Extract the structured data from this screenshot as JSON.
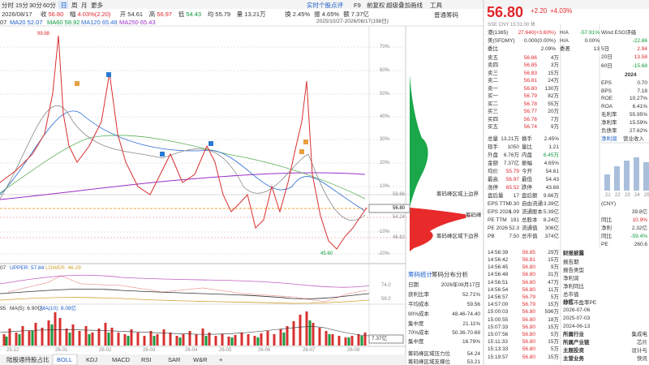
{
  "toolbar": {
    "periods": [
      "分时",
      "15分",
      "30分",
      "60分",
      "日",
      "周",
      "月",
      "更多"
    ],
    "tools": [
      "实时个股点评",
      "F9",
      "前复权",
      "超级叠加",
      "画线",
      "工具"
    ]
  },
  "quote_line": [
    "2026/08/17",
    "收",
    "56.80",
    "幅",
    "4.03%(2.20)",
    "开",
    "54.61",
    "高",
    "56.97",
    "低",
    "54.43",
    "均",
    "55.79",
    "量",
    "13.21万",
    "换",
    "2.45%",
    "振",
    "4.65%",
    "额",
    "7.37亿"
  ],
  "ma_line": [
    "07",
    "MA20 52.07",
    "MA60 58.92",
    "MA120 65.48",
    "MA250 65.43"
  ],
  "chart": {
    "range": "2025/10/27-2026/08/17(198日)",
    "chip_title": "普通筹码",
    "high": "99.88",
    "low": "45.60",
    "pct_labels": [
      "70%",
      "60%",
      "50%",
      "40%",
      "30%",
      "20%",
      "10%",
      "-10%",
      "-20%"
    ],
    "price_labels": [
      "59.66",
      "56.80",
      "54.24",
      "46.82"
    ],
    "chip_labels": [
      "筹码峰区域上边界",
      "筹码峰",
      "筹码峰区域下边界"
    ],
    "x_labels": [
      "25-12",
      "26-01",
      "26-02",
      "26-03",
      "26-04",
      "26-05",
      "26-06",
      "26-07",
      "26-08"
    ]
  },
  "boll": {
    "header": [
      "07",
      "UPPER: 57.84",
      "LOWER: 46.29"
    ],
    "axis": [
      "74.0",
      "56.0"
    ]
  },
  "volume": {
    "header": [
      "95",
      "MA(5): 6.90亿",
      "MA(10): 8.08亿"
    ],
    "last": "7.37亿"
  },
  "tabs": [
    "陆股通持股占比",
    "BOLL",
    "KDJ",
    "MACD",
    "RSI",
    "SAR",
    "W&R",
    "+"
  ],
  "chip_stats": {
    "tabs": [
      "筹码统计",
      "筹码分布分析"
    ],
    "rows": [
      [
        "日期",
        "2026年08月17日"
      ],
      [
        "获利比率",
        "52.71%"
      ],
      [
        "平均成本",
        "59.56"
      ],
      [
        "90%成本",
        "48.46-74.40"
      ],
      [
        "集中度",
        "21.11%"
      ],
      [
        "70%成本",
        "50.36-70.68"
      ],
      [
        "集中度",
        "16.79%"
      ],
      [
        "筹码峰区域压力位",
        "54.24"
      ],
      [
        "筹码峰区域支撑位",
        "53.21"
      ]
    ]
  },
  "quote": {
    "price": "56.80",
    "change": "+2.20",
    "pct": "+4.03%",
    "status": "SSE CNY 15:31:00 休",
    "hk": [
      "港(1385)",
      "27.640(+3.60%)",
      "H/A",
      "-57.91%"
    ],
    "us": [
      "美(SFDMY)",
      "0.000(0.00%)",
      "H/A",
      "0.00%"
    ],
    "wb": [
      "委比",
      "2.09%",
      "委差",
      "13"
    ],
    "book": [
      [
        "卖五",
        "56.86",
        "4万"
      ],
      [
        "卖四",
        "56.85",
        "3万"
      ],
      [
        "卖三",
        "56.83",
        "15万"
      ],
      [
        "卖二",
        "56.81",
        "24万"
      ],
      [
        "卖一",
        "56.80",
        "130万"
      ],
      [
        "买一",
        "56.79",
        "82万"
      ],
      [
        "买二",
        "56.78",
        "55万"
      ],
      [
        "买三",
        "56.77",
        "20万"
      ],
      [
        "买四",
        "56.76",
        "7万"
      ],
      [
        "买五",
        "56.74",
        "9万"
      ]
    ],
    "stats": [
      [
        "总量",
        "13.21万",
        "换手",
        "2.45%"
      ],
      [
        "现手",
        "1050",
        "量比",
        "1.21"
      ],
      [
        "外盘",
        "6.76万",
        "内盘",
        "6.45万"
      ],
      [
        "金额",
        "7.37亿",
        "振幅",
        "4.65%"
      ],
      [
        "均价",
        "55.79",
        "今开",
        "54.61"
      ],
      [
        "最高",
        "56.97",
        "最低",
        "54.43"
      ],
      [
        "涨停",
        "65.52",
        "跌停",
        "43.68"
      ],
      [
        "盘后量",
        "17",
        "盘后额",
        "9.66万"
      ]
    ],
    "valuation": [
      [
        "EPS TTM",
        "0.30",
        "自由流通",
        "3.39亿"
      ],
      [
        "EPS 2026",
        "1.09",
        "流通股本",
        "5.39亿"
      ],
      [
        "PE TTM",
        "191",
        "总股本",
        "8.24亿"
      ],
      [
        "PE 2026",
        "52.3",
        "流通值",
        "306亿"
      ],
      [
        "PB",
        "7.50",
        "总市值",
        "374亿"
      ]
    ]
  },
  "ticks": [
    [
      "14:56:39",
      "56.85",
      "29万"
    ],
    [
      "14:56:42",
      "56.81",
      "15万"
    ],
    [
      "14:56:45",
      "56.80",
      "9万"
    ],
    [
      "14:56:48",
      "56.80",
      "31万"
    ],
    [
      "14:56:51",
      "56.80",
      "47万"
    ],
    [
      "14:56:54",
      "56.80",
      "11万"
    ],
    [
      "14:56:57",
      "56.79",
      "5万"
    ],
    [
      "14:57:00",
      "56.79",
      "15万"
    ],
    [
      "15:00:03",
      "56.80",
      "596万"
    ],
    [
      "15:00:55",
      "56.80",
      "18万"
    ],
    [
      "15:07:33",
      "56.80",
      "15万"
    ],
    [
      "15:07:56",
      "56.80",
      "5万"
    ],
    [
      "15:11:33",
      "56.80",
      "15万"
    ],
    [
      "15:13:33",
      "56.80",
      "5万"
    ],
    [
      "15:19:57",
      "56.80",
      "15万"
    ]
  ],
  "side": {
    "esg": "Wind ESG评级",
    "top": "-22.86",
    "returns": [
      [
        "5日",
        "2.94"
      ],
      [
        "20日",
        "13.58"
      ],
      [
        "60日",
        "-15.68"
      ]
    ],
    "year": "2024",
    "fin": [
      [
        "EPS",
        "0.70"
      ],
      [
        "BPS",
        "7.18"
      ],
      [
        "ROE",
        "10.27%"
      ],
      [
        "ROA",
        "6.41%"
      ],
      [
        "毛利率",
        "55.95%"
      ],
      [
        "净利率",
        "15.59%"
      ],
      [
        "负债率",
        "27.62%"
      ]
    ],
    "fin_tabs": [
      "净利润",
      "营业收入"
    ],
    "years": [
      "21",
      "22",
      "23",
      "24",
      "25"
    ],
    "unit": "(CNY)",
    "summary": [
      [
        "",
        "39.8亿"
      ],
      [
        "同比",
        "10.9%"
      ],
      [
        "净利",
        "2.32亿"
      ],
      [
        "同比",
        "-59.4%"
      ],
      [
        "PE",
        "260.6"
      ]
    ]
  },
  "info": {
    "report_title": "财报披露",
    "report_items": [
      "报告期",
      "报告类型",
      "净利润",
      "净利同比",
      "总市值",
      "静态市盈率PE"
    ],
    "div_title": "分红",
    "div_dates": [
      "2026-07-06",
      "2025-07-03",
      "2024-06-13"
    ],
    "tags": [
      [
        "所属行业",
        "集成电"
      ],
      [
        "所属产业链",
        "芯片"
      ],
      [
        "主题投资",
        "设计与"
      ],
      [
        "主营业务",
        "快讯"
      ]
    ]
  }
}
